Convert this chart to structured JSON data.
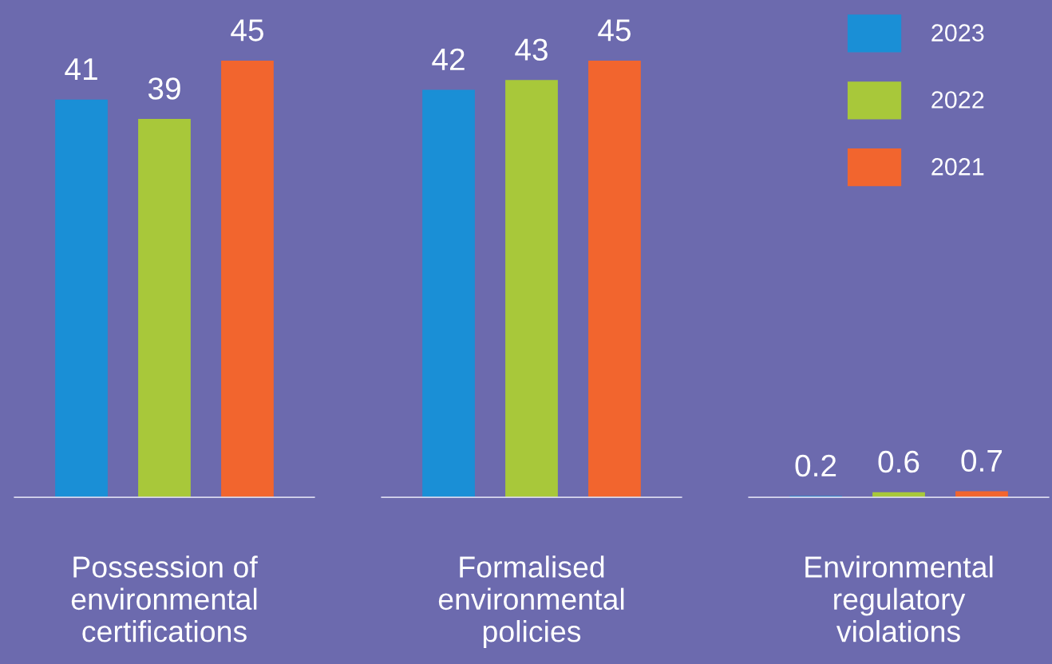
{
  "chart_data": {
    "type": "bar",
    "categories": [
      "Possession of\nenvironmental\ncertifications",
      "Formalised\nenvironmental\npolicies",
      "Environmental\nregulatory\nviolations"
    ],
    "series": [
      {
        "name": "2023",
        "color": "#1a8fd6",
        "values": [
          41,
          42,
          0.2
        ]
      },
      {
        "name": "2022",
        "color": "#a8c83a",
        "values": [
          39,
          43,
          0.6
        ]
      },
      {
        "name": "2021",
        "color": "#f2652e",
        "values": [
          45,
          45,
          0.7
        ]
      }
    ],
    "data_labels": true,
    "legend": "top right",
    "grid": false
  }
}
